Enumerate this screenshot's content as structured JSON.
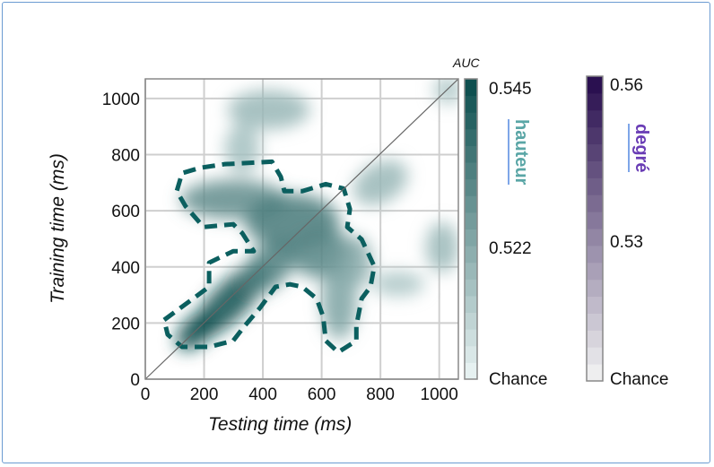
{
  "chart_data": {
    "type": "heatmap",
    "title": "",
    "xlabel": "Testing time (ms)",
    "ylabel": "Training time (ms)",
    "xlim": [
      0,
      1065
    ],
    "ylim": [
      0,
      1070
    ],
    "xticks": [
      0,
      200,
      400,
      600,
      800,
      1000
    ],
    "yticks": [
      0,
      200,
      400,
      600,
      800,
      1000
    ],
    "grid": true,
    "diagonal": true,
    "blobs": [
      {
        "x": 170,
        "y": 170,
        "sx": 80,
        "sy": 50,
        "angle": 45,
        "auc": 0.545
      },
      {
        "x": 290,
        "y": 280,
        "sx": 170,
        "sy": 65,
        "angle": 45,
        "auc": 0.545
      },
      {
        "x": 420,
        "y": 400,
        "sx": 110,
        "sy": 70,
        "angle": 45,
        "auc": 0.532
      },
      {
        "x": 300,
        "y": 640,
        "sx": 180,
        "sy": 70,
        "angle": 0,
        "auc": 0.528
      },
      {
        "x": 500,
        "y": 560,
        "sx": 160,
        "sy": 100,
        "angle": 0,
        "auc": 0.533
      },
      {
        "x": 600,
        "y": 450,
        "sx": 110,
        "sy": 90,
        "angle": 0,
        "auc": 0.53
      },
      {
        "x": 660,
        "y": 280,
        "sx": 60,
        "sy": 140,
        "angle": 0,
        "auc": 0.522
      },
      {
        "x": 720,
        "y": 420,
        "sx": 50,
        "sy": 90,
        "angle": 0,
        "auc": 0.52
      },
      {
        "x": 420,
        "y": 960,
        "sx": 140,
        "sy": 70,
        "angle": 0,
        "auc": 0.516
      },
      {
        "x": 330,
        "y": 820,
        "sx": 60,
        "sy": 90,
        "angle": 0,
        "auc": 0.514
      },
      {
        "x": 800,
        "y": 700,
        "sx": 100,
        "sy": 70,
        "angle": 30,
        "auc": 0.516
      },
      {
        "x": 1010,
        "y": 470,
        "sx": 55,
        "sy": 90,
        "angle": 0,
        "auc": 0.516
      },
      {
        "x": 860,
        "y": 340,
        "sx": 90,
        "sy": 45,
        "angle": 0,
        "auc": 0.512
      },
      {
        "x": 1030,
        "y": 1030,
        "sx": 50,
        "sy": 50,
        "angle": 0,
        "auc": 0.512
      }
    ],
    "significance_contour": [
      [
        64,
        211
      ],
      [
        217,
        329
      ],
      [
        217,
        415
      ],
      [
        299,
        456
      ],
      [
        369,
        456
      ],
      [
        330,
        520
      ],
      [
        299,
        552
      ],
      [
        198,
        542
      ],
      [
        137,
        616
      ],
      [
        107,
        670
      ],
      [
        125,
        734
      ],
      [
        186,
        753
      ],
      [
        269,
        766
      ],
      [
        431,
        775
      ],
      [
        461,
        721
      ],
      [
        473,
        670
      ],
      [
        534,
        670
      ],
      [
        614,
        695
      ],
      [
        675,
        679
      ],
      [
        696,
        606
      ],
      [
        687,
        542
      ],
      [
        736,
        498
      ],
      [
        779,
        402
      ],
      [
        766,
        329
      ],
      [
        736,
        287
      ],
      [
        718,
        191
      ],
      [
        718,
        137
      ],
      [
        656,
        96
      ],
      [
        614,
        137
      ],
      [
        605,
        223
      ],
      [
        583,
        287
      ],
      [
        534,
        329
      ],
      [
        492,
        338
      ],
      [
        443,
        329
      ],
      [
        391,
        255
      ],
      [
        339,
        191
      ],
      [
        299,
        137
      ],
      [
        217,
        115
      ],
      [
        125,
        115
      ],
      [
        76,
        159
      ]
    ],
    "colorbars": [
      {
        "title": "AUC",
        "label": "hauteur",
        "min_label": "Chance",
        "ticks": [
          "0.545",
          "0.522"
        ],
        "vmin": 0.5,
        "vmax": 0.545,
        "color_low": "#e6f1f1",
        "color_high": "#0e4f4f",
        "label_color": "#5aa6a6"
      },
      {
        "label": "degré",
        "min_label": "Chance",
        "ticks": [
          "0.56",
          "0.53"
        ],
        "vmin": 0.5,
        "vmax": 0.56,
        "color_low": "#eeeeef",
        "color_high": "#2a1050",
        "label_color": "#6a3db5"
      }
    ],
    "contour_color": "#0b5f5f"
  }
}
